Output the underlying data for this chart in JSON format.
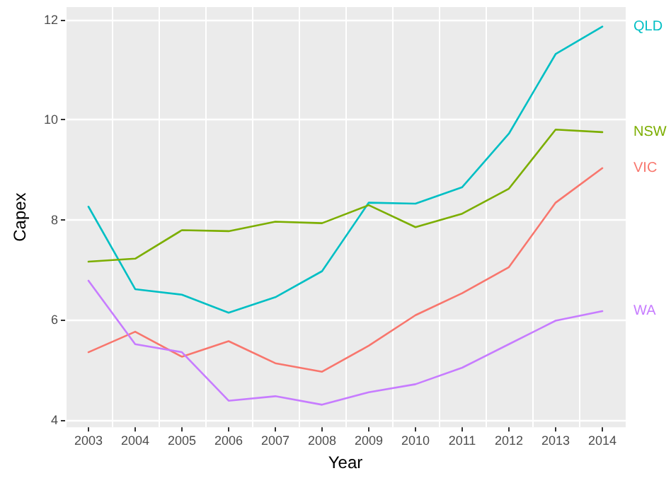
{
  "chart_data": {
    "type": "line",
    "xlabel": "Year",
    "ylabel": "Capex",
    "categories": [
      "2003",
      "2004",
      "2005",
      "2006",
      "2007",
      "2008",
      "2009",
      "2010",
      "2011",
      "2012",
      "2013",
      "2014"
    ],
    "series": [
      {
        "name": "QLD",
        "color": "#00bfc4",
        "values": [
          8.26,
          6.61,
          6.5,
          6.14,
          6.45,
          6.97,
          8.34,
          8.32,
          8.65,
          9.72,
          11.31,
          11.86
        ]
      },
      {
        "name": "NSW",
        "color": "#7cae00",
        "values": [
          7.16,
          7.22,
          7.79,
          7.77,
          7.96,
          7.93,
          8.29,
          7.85,
          8.12,
          8.62,
          9.8,
          9.75
        ]
      },
      {
        "name": "VIC",
        "color": "#f8766d",
        "values": [
          5.35,
          5.76,
          5.26,
          5.57,
          5.13,
          4.96,
          5.48,
          6.09,
          6.53,
          7.05,
          8.34,
          9.03
        ]
      },
      {
        "name": "WA",
        "color": "#c77cff",
        "values": [
          6.78,
          5.51,
          5.35,
          4.38,
          4.47,
          4.3,
          4.55,
          4.71,
          5.04,
          5.51,
          5.98,
          6.17
        ]
      }
    ],
    "ylim": [
      3.85,
      12.25
    ],
    "yticks": [
      4,
      6,
      8,
      10,
      12
    ],
    "grid": true,
    "marker": "none",
    "line_style": "solid"
  }
}
